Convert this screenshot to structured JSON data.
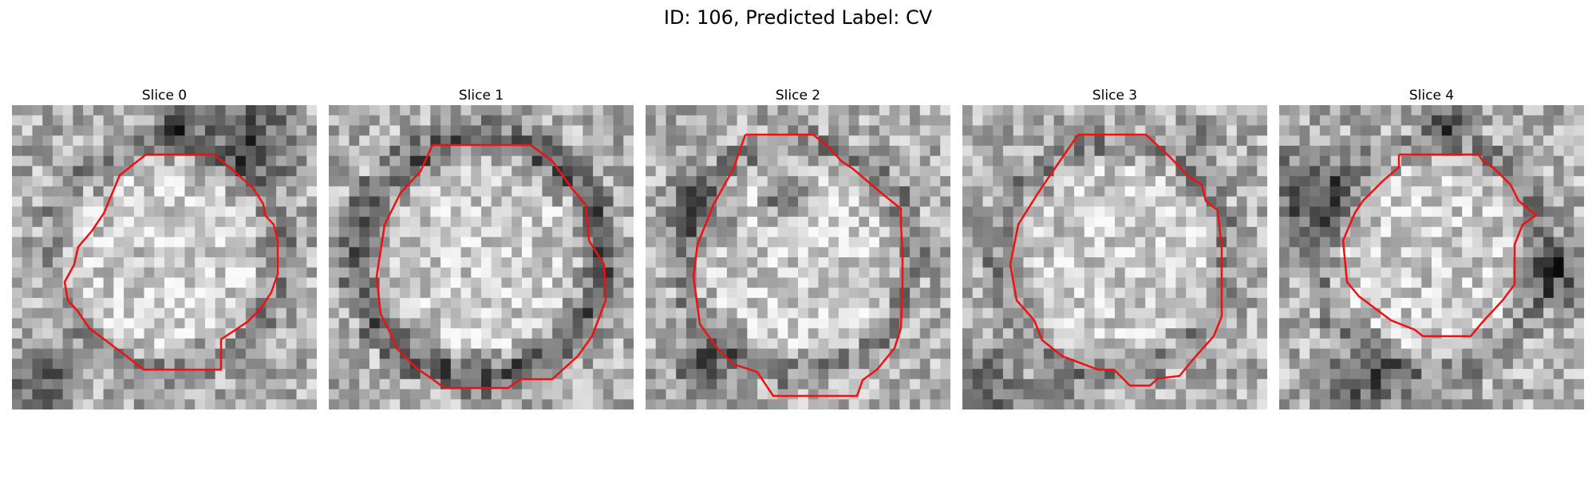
{
  "figure": {
    "title": "ID: 106, Predicted Label: CV"
  },
  "colors": {
    "background": "#ffffff",
    "contour": "#ee1111",
    "image_colormap": "grayscale"
  },
  "panels": [
    {
      "title": "Slice 0",
      "image": "grayscale-micrograph",
      "overlay": "red-contour",
      "seed": 11,
      "dark_blobs": "top-right"
    },
    {
      "title": "Slice 1",
      "image": "grayscale-micrograph",
      "overlay": "red-contour",
      "seed": 23,
      "dark_blobs": "ring"
    },
    {
      "title": "Slice 2",
      "image": "grayscale-micrograph",
      "overlay": "red-contour",
      "seed": 37,
      "dark_blobs": "left"
    },
    {
      "title": "Slice 3",
      "image": "grayscale-micrograph",
      "overlay": "red-contour",
      "seed": 51,
      "dark_blobs": "bottom-left"
    },
    {
      "title": "Slice 4",
      "image": "grayscale-micrograph",
      "overlay": "red-contour",
      "seed": 67,
      "dark_blobs": "surround"
    }
  ]
}
